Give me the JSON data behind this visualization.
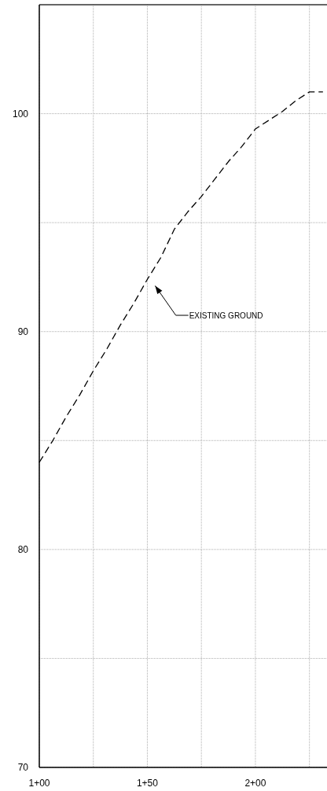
{
  "chart_data": {
    "type": "line",
    "categories": [
      "1+00",
      null,
      null,
      null,
      null,
      null,
      null,
      null,
      "1+50",
      null,
      null,
      null,
      null,
      null,
      null,
      null,
      "2+00",
      null,
      null,
      null,
      null,
      null
    ],
    "series": [
      {
        "color": "#000000",
        "values": [
          84.0,
          85.0,
          86.1,
          87.1,
          88.2,
          89.2,
          90.3,
          91.3,
          92.4,
          93.4,
          94.7,
          95.5,
          96.2,
          97.0,
          97.8,
          98.5,
          99.3,
          99.7,
          100.1,
          100.6,
          101.0,
          101.0
        ]
      }
    ],
    "ylim": [
      70,
      105
    ],
    "yticks": [
      70,
      {
        "value": 75,
        "label": null
      },
      80,
      {
        "value": 85,
        "label": null
      },
      90,
      {
        "value": 95,
        "label": null
      },
      100
    ],
    "grid": true,
    "line_style": "dashed",
    "annotations": [
      "EXISTING GROUND"
    ]
  }
}
